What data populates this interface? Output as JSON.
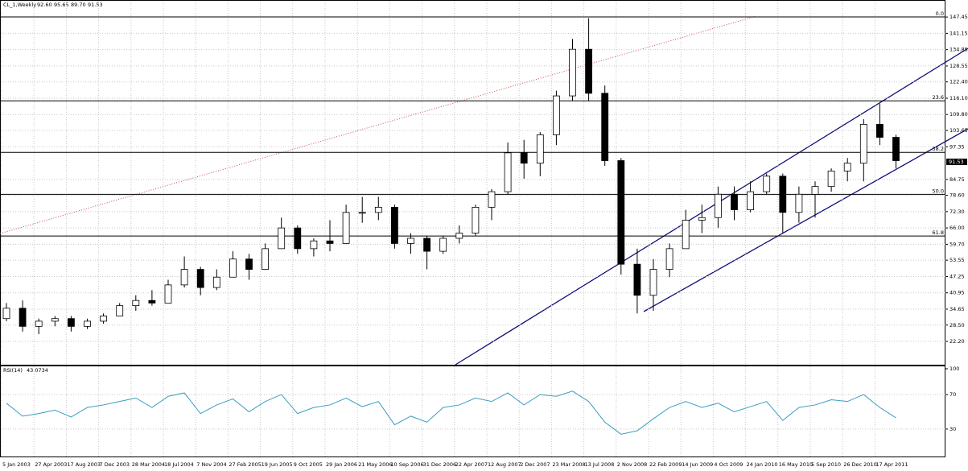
{
  "chart_data": [
    {
      "type": "candlestick",
      "symbol": "CL_1,Weekly",
      "header_values": [
        {
          "value": 92.6,
          "label": "92.60"
        },
        95.65,
        {
          "value": 89.7,
          "label": "89.70"
        },
        91.53
      ],
      "last_price": 91.53,
      "categories": [
        "5 Jan 2003",
        null,
        "27 Apr 2003",
        null,
        "17 Aug 2003",
        null,
        "7 Dec 2003",
        null,
        "28 Mar 2004",
        null,
        "18 Jul 2004",
        null,
        "7 Nov 2004",
        null,
        "27 Feb 2005",
        null,
        "19 Jun 2005",
        null,
        "9 Oct 2005",
        null,
        "29 Jan 2006",
        null,
        "21 May 2006",
        null,
        "10 Sep 2006",
        null,
        "31 Dec 2006",
        null,
        "22 Apr 2007",
        null,
        "12 Aug 2007",
        null,
        "2 Dec 2007",
        null,
        "23 Mar 2008",
        null,
        "13 Jul 2008",
        null,
        "2 Nov 2008",
        null,
        "22 Feb 2009",
        null,
        "14 Jun 2009",
        null,
        "4 Oct 2009",
        null,
        "24 Jan 2010",
        null,
        "16 May 2010",
        null,
        "5 Sep 2010",
        null,
        "26 Dec 2010",
        null,
        "17 Apr 2011",
        null
      ],
      "open": [
        31,
        35,
        28,
        30,
        31,
        28,
        30,
        32,
        36,
        38,
        37,
        44,
        50,
        43,
        47,
        54,
        50,
        58,
        66,
        58,
        61,
        60,
        72,
        72,
        74,
        60,
        62,
        57,
        62,
        64,
        74,
        80,
        95,
        91,
        102,
        117,
        135,
        118,
        92,
        52,
        40,
        50,
        58,
        69,
        70,
        79,
        73,
        80,
        86,
        72,
        79,
        82,
        88,
        91,
        106,
        101
      ],
      "high": [
        37,
        38,
        31,
        32,
        32,
        31,
        33,
        37,
        40,
        42,
        46,
        55,
        51,
        50,
        57,
        56,
        60,
        70,
        67,
        62,
        69,
        75,
        78,
        78,
        75,
        64,
        63,
        63,
        67,
        75,
        81,
        99,
        100,
        103,
        119,
        139,
        147,
        121,
        93,
        58,
        54,
        60,
        73,
        75,
        82,
        82,
        84,
        87,
        87,
        82,
        84,
        89,
        93,
        108,
        114,
        102
      ],
      "low": [
        30,
        26,
        25,
        28,
        26,
        27,
        29,
        32,
        34,
        36,
        37,
        43,
        40,
        42,
        47,
        46,
        50,
        58,
        56,
        55,
        57,
        60,
        68,
        69,
        58,
        56,
        50,
        56,
        60,
        63,
        69,
        79,
        85,
        86,
        98,
        115,
        115,
        90,
        48,
        33,
        34,
        47,
        58,
        64,
        66,
        69,
        72,
        79,
        64,
        68,
        70,
        80,
        84,
        84,
        98,
        89
      ],
      "close": [
        35,
        28,
        30,
        31,
        28,
        30,
        32,
        36,
        38,
        37,
        44,
        50,
        43,
        47,
        54,
        50,
        58,
        66,
        58,
        61,
        60,
        72,
        72,
        74,
        60,
        62,
        57,
        62,
        64,
        74,
        80,
        95,
        91,
        102,
        117,
        135,
        118,
        92,
        52,
        40,
        50,
        58,
        69,
        70,
        79,
        73,
        80,
        86,
        72,
        79,
        82,
        88,
        91,
        106,
        101,
        92
      ],
      "ylim": [
        13.5,
        153.4
      ],
      "yticks": [
        147.45,
        141.15,
        134.85,
        128.55,
        {
          "value": 122.4,
          "label": "122.40"
        },
        {
          "value": 116.1,
          "label": "116.10"
        },
        {
          "value": 109.8,
          "label": "109.80"
        },
        103.65,
        97.35,
        84.75,
        {
          "value": 78.6,
          "label": "78.60"
        },
        {
          "value": 72.3,
          "label": "72.30"
        },
        {
          "value": 66,
          "label": "66.00"
        },
        {
          "value": 59.7,
          "label": "59.70"
        },
        53.55,
        47.25,
        40.95,
        34.65,
        {
          "value": 28.5,
          "label": "28.50"
        },
        {
          "value": 22.2,
          "label": "22.20"
        }
      ],
      "fib_levels": [
        {
          "value": 147.5,
          "label": "0.0"
        },
        {
          "value": 115.1,
          "label": "23.6"
        },
        {
          "value": 95.2,
          "label": "38.2"
        },
        {
          "value": 79.0,
          "label": "50.0"
        },
        {
          "value": 62.9,
          "label": "61.8"
        }
      ],
      "grid": true
    },
    {
      "type": "line",
      "title": "RSI(14)",
      "last_value": 43.0734,
      "color": "#3a9cc0",
      "values": [
        60,
        45,
        48,
        52,
        44,
        55,
        58,
        62,
        66,
        55,
        68,
        72,
        48,
        58,
        65,
        50,
        62,
        70,
        48,
        55,
        58,
        66,
        56,
        62,
        35,
        45,
        38,
        55,
        58,
        66,
        62,
        72,
        58,
        70,
        68,
        74,
        62,
        38,
        24,
        28,
        42,
        55,
        62,
        55,
        60,
        50,
        56,
        62,
        40,
        55,
        58,
        64,
        62,
        70,
        55,
        43.07
      ],
      "ylim": [
        0,
        100
      ],
      "yticks": [
        100,
        70,
        30
      ],
      "grid": true
    }
  ]
}
